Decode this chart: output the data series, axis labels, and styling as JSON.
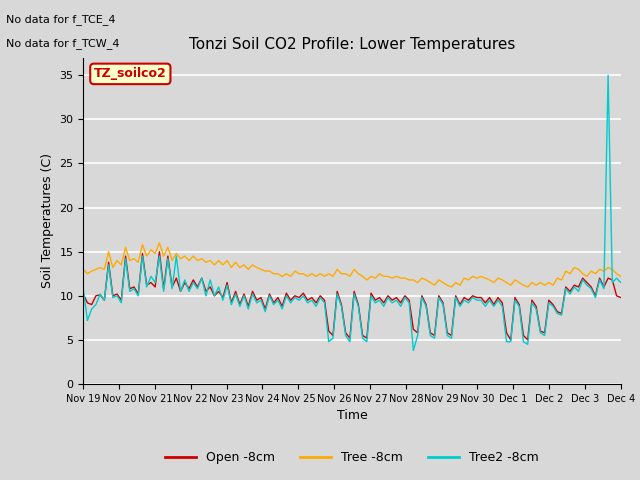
{
  "title": "Tonzi Soil CO2 Profile: Lower Temperatures",
  "xlabel": "Time",
  "ylabel": "Soil Temperatures (C)",
  "ylim": [
    0,
    37
  ],
  "yticks": [
    0,
    5,
    10,
    15,
    20,
    25,
    30,
    35
  ],
  "bg_color": "#d8d8d8",
  "plot_bg": "#d8d8d8",
  "grid_color": "white",
  "annotations": [
    "No data for f_TCE_4",
    "No data for f_TCW_4"
  ],
  "legend_label_box": "TZ_soilco2",
  "series_labels": [
    "Open -8cm",
    "Tree -8cm",
    "Tree2 -8cm"
  ],
  "series_colors": [
    "#cc0000",
    "#ffaa00",
    "#00cccc"
  ],
  "x_tick_labels": [
    "Nov 19",
    "Nov 20",
    "Nov 21",
    "Nov 22",
    "Nov 23",
    "Nov 24",
    "Nov 25",
    "Nov 26",
    "Nov 27",
    "Nov 28",
    "Nov 29",
    "Nov 30",
    "Dec 1",
    "Dec 2",
    "Dec 3",
    "Dec 4"
  ],
  "open_8cm": [
    10.2,
    9.2,
    9.0,
    10.0,
    10.1,
    9.5,
    13.8,
    10.0,
    10.2,
    9.5,
    14.5,
    10.8,
    11.0,
    10.2,
    14.8,
    11.2,
    11.5,
    11.0,
    15.0,
    10.8,
    14.5,
    11.0,
    12.0,
    10.5,
    11.5,
    10.8,
    11.8,
    11.0,
    12.0,
    10.5,
    11.0,
    10.0,
    10.5,
    9.8,
    11.5,
    9.2,
    10.5,
    9.0,
    10.2,
    8.8,
    10.5,
    9.5,
    9.8,
    8.5,
    10.2,
    9.2,
    9.8,
    8.8,
    10.3,
    9.5,
    10.0,
    9.8,
    10.3,
    9.5,
    9.8,
    9.2,
    10.0,
    9.5,
    6.0,
    5.5,
    10.5,
    9.0,
    5.8,
    5.2,
    10.5,
    9.0,
    5.5,
    5.2,
    10.3,
    9.5,
    9.8,
    9.2,
    10.0,
    9.5,
    9.8,
    9.2,
    10.0,
    9.5,
    6.2,
    5.8,
    10.0,
    9.0,
    5.8,
    5.5,
    10.0,
    9.2,
    5.8,
    5.5,
    10.0,
    9.0,
    9.8,
    9.5,
    10.0,
    9.8,
    9.8,
    9.2,
    9.8,
    9.0,
    9.8,
    9.2,
    5.8,
    5.0,
    9.8,
    9.0,
    5.5,
    5.0,
    9.5,
    8.8,
    6.0,
    5.8,
    9.5,
    9.0,
    8.2,
    8.0,
    11.0,
    10.5,
    11.2,
    11.0,
    12.0,
    11.5,
    11.0,
    10.0,
    12.0,
    11.0,
    12.0,
    11.8,
    10.0,
    9.8
  ],
  "tree_8cm": [
    13.0,
    12.5,
    12.8,
    13.0,
    13.2,
    13.0,
    15.0,
    13.2,
    14.0,
    13.5,
    15.5,
    14.0,
    14.2,
    13.8,
    15.8,
    14.5,
    15.2,
    14.8,
    16.0,
    14.5,
    15.5,
    14.0,
    14.8,
    14.2,
    14.5,
    14.0,
    14.5,
    14.0,
    14.2,
    13.8,
    14.0,
    13.5,
    14.0,
    13.5,
    14.0,
    13.2,
    13.8,
    13.2,
    13.5,
    13.0,
    13.5,
    13.2,
    13.0,
    12.8,
    12.8,
    12.5,
    12.5,
    12.2,
    12.5,
    12.2,
    12.8,
    12.5,
    12.5,
    12.2,
    12.5,
    12.2,
    12.5,
    12.2,
    12.5,
    12.2,
    13.0,
    12.5,
    12.5,
    12.2,
    13.0,
    12.5,
    12.2,
    11.8,
    12.2,
    12.0,
    12.5,
    12.2,
    12.2,
    12.0,
    12.2,
    12.0,
    12.0,
    11.8,
    11.8,
    11.5,
    12.0,
    11.8,
    11.5,
    11.2,
    11.8,
    11.5,
    11.2,
    11.0,
    11.5,
    11.2,
    12.0,
    11.8,
    12.2,
    12.0,
    12.2,
    12.0,
    11.8,
    11.5,
    12.0,
    11.8,
    11.5,
    11.2,
    11.8,
    11.5,
    11.2,
    11.0,
    11.5,
    11.2,
    11.5,
    11.2,
    11.5,
    11.2,
    12.0,
    11.8,
    12.8,
    12.5,
    13.2,
    13.0,
    12.5,
    12.2,
    12.8,
    12.5,
    13.0,
    12.8,
    13.2,
    13.0,
    12.5,
    12.2
  ],
  "tree2_8cm": [
    10.8,
    7.2,
    8.5,
    9.0,
    10.2,
    9.5,
    13.5,
    9.8,
    10.0,
    9.2,
    14.2,
    10.5,
    10.8,
    10.0,
    14.5,
    11.0,
    12.2,
    11.5,
    14.5,
    10.5,
    14.2,
    10.8,
    14.5,
    10.5,
    11.8,
    10.5,
    11.5,
    10.8,
    12.0,
    10.0,
    11.8,
    10.0,
    11.0,
    9.5,
    11.2,
    9.0,
    10.2,
    8.8,
    10.0,
    8.5,
    10.2,
    9.2,
    9.5,
    8.2,
    10.0,
    9.0,
    9.5,
    8.5,
    10.0,
    9.2,
    9.8,
    9.5,
    10.0,
    9.2,
    9.5,
    8.8,
    9.8,
    9.2,
    4.8,
    5.2,
    10.2,
    8.8,
    5.5,
    4.8,
    10.2,
    8.8,
    5.2,
    4.8,
    10.0,
    9.2,
    9.5,
    8.8,
    9.8,
    9.2,
    9.5,
    8.8,
    9.8,
    9.2,
    3.8,
    5.5,
    9.8,
    8.8,
    5.5,
    5.2,
    9.8,
    9.0,
    5.5,
    5.2,
    9.8,
    8.8,
    9.5,
    9.2,
    9.8,
    9.5,
    9.5,
    8.8,
    9.5,
    8.8,
    9.5,
    8.8,
    4.8,
    4.8,
    9.5,
    8.8,
    4.8,
    4.5,
    9.2,
    8.5,
    5.8,
    5.5,
    9.2,
    8.8,
    8.0,
    7.8,
    10.8,
    10.2,
    11.0,
    10.5,
    11.8,
    11.2,
    10.8,
    9.8,
    11.8,
    10.8,
    35.0,
    11.5,
    12.0,
    11.5
  ],
  "n_points": 128
}
